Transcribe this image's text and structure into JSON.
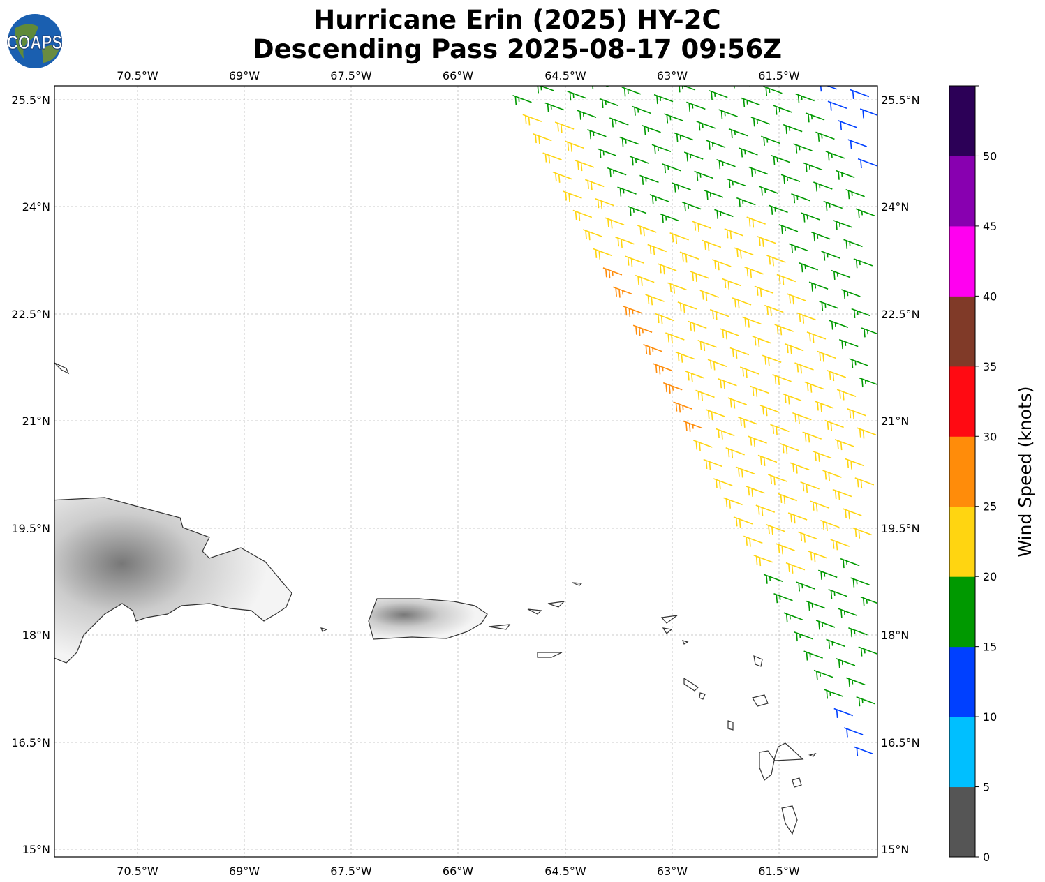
{
  "title_line1": "Hurricane Erin (2025) HY-2C",
  "title_line2": "Descending Pass 2025-08-17 09:56Z",
  "logo_text": "COAPS",
  "lon_ticks": [
    "70.5°W",
    "69°W",
    "67.5°W",
    "66°W",
    "64.5°W",
    "63°W",
    "61.5°W"
  ],
  "lat_ticks": [
    "25.5°N",
    "24°N",
    "22.5°N",
    "21°N",
    "19.5°N",
    "18°N",
    "16.5°N",
    "15°N"
  ],
  "colorbar": {
    "label": "Wind Speed (knots)",
    "ticks": [
      "0",
      "5",
      "10",
      "15",
      "20",
      "25",
      "30",
      "35",
      "40",
      "45",
      "50"
    ],
    "bins": [
      {
        "min": 0,
        "max": 5,
        "color": "#555555"
      },
      {
        "min": 5,
        "max": 10,
        "color": "#00bfff"
      },
      {
        "min": 10,
        "max": 15,
        "color": "#0040ff"
      },
      {
        "min": 15,
        "max": 20,
        "color": "#009900"
      },
      {
        "min": 20,
        "max": 25,
        "color": "#ffd511"
      },
      {
        "min": 25,
        "max": 30,
        "color": "#ff8c0a"
      },
      {
        "min": 30,
        "max": 35,
        "color": "#ff0a12"
      },
      {
        "min": 35,
        "max": 40,
        "color": "#803a28"
      },
      {
        "min": 40,
        "max": 45,
        "color": "#ff00f0"
      },
      {
        "min": 45,
        "max": 50,
        "color": "#8800b0"
      },
      {
        "min": 50,
        "max": 55,
        "color": "#2c0057"
      }
    ]
  }
}
